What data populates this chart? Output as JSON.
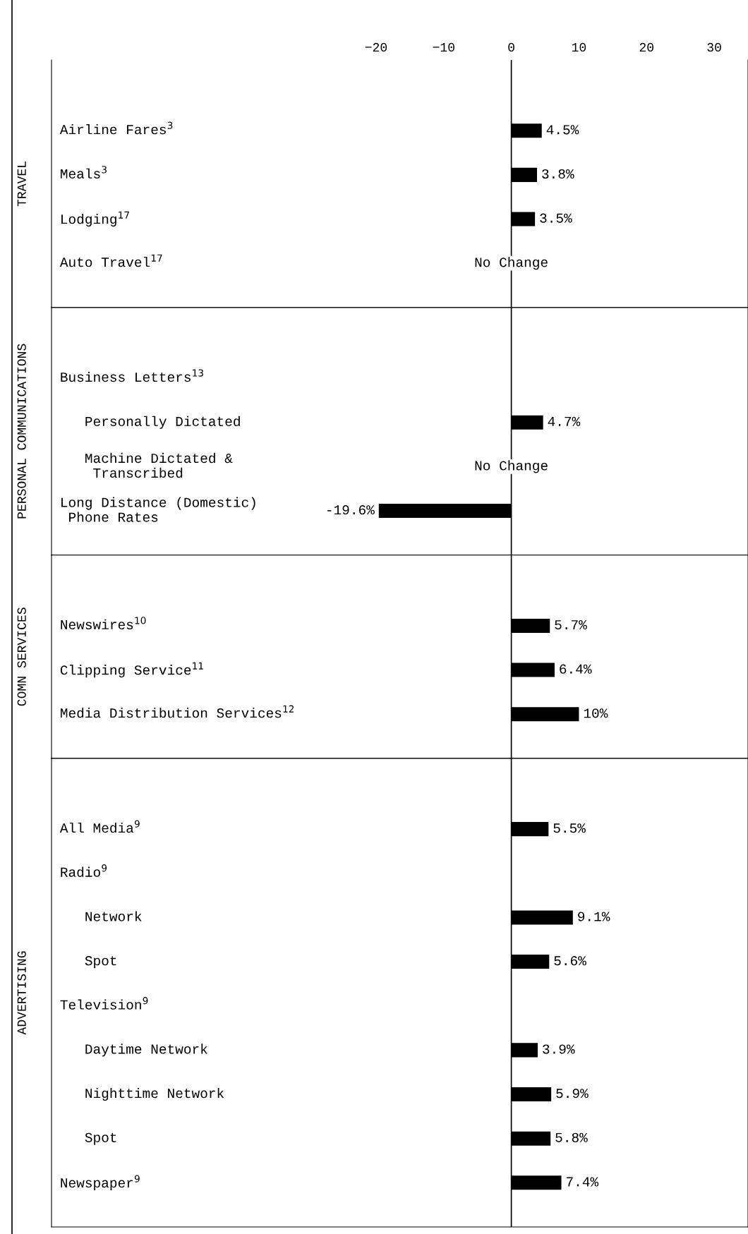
{
  "chart_data": [
    {
      "type": "bar",
      "orientation": "horizontal",
      "ylabel": "TRAVEL",
      "color": "#000000",
      "xlim": [
        -68,
        35
      ],
      "xticks": [
        -20,
        -10,
        0,
        10,
        20,
        30
      ],
      "tick_labels": "x",
      "grid": false,
      "categories": [
        "Airline Fares$^{3}$",
        "Meals$^{3}$",
        "Lodging$^{17}$",
        "Auto Travel$^{17}$"
      ],
      "values": [
        4.5,
        3.8,
        3.5,
        0
      ],
      "value_labels": [
        "4.5%",
        "3.8%",
        "3.5%",
        "No Change"
      ],
      "ref_lines": [
        {
          "axis": "x",
          "value": 0,
          "color": "#000000"
        }
      ]
    },
    {
      "type": "bar",
      "orientation": "horizontal",
      "ylabel": "PERSONAL COMMUNICATIONS",
      "color": "#000000",
      "xlim": [
        -68,
        35
      ],
      "tick_labels": false,
      "grid": false,
      "categories": [
        "Business Letters$^{13}$",
        "   Personally Dictated",
        "   Machine Dictated &\n    Transcribed",
        "Long Distance (Domestic)\n Phone Rates"
      ],
      "values": [
        null,
        4.7,
        0,
        -19.6
      ],
      "value_labels": [
        null,
        "4.7%",
        "No Change",
        "-19.6%"
      ],
      "ref_lines": [
        {
          "axis": "x",
          "value": 0,
          "color": "#000000"
        }
      ]
    },
    {
      "type": "bar",
      "orientation": "horizontal",
      "ylabel": "COMN SERVICES",
      "color": "#000000",
      "xlim": [
        -68,
        35
      ],
      "tick_labels": false,
      "grid": false,
      "categories": [
        "Newswires$^{10}$",
        "Clipping Service$^{11}$",
        "Media Distribution Services$^{12}$"
      ],
      "values": [
        5.7,
        6.4,
        10
      ],
      "value_labels": [
        "5.7%",
        "6.4%",
        "10%"
      ],
      "ref_lines": [
        {
          "axis": "x",
          "value": 0,
          "color": "#000000"
        }
      ]
    },
    {
      "type": "bar",
      "orientation": "horizontal",
      "ylabel": "ADVERTISING",
      "color": "#000000",
      "xlim": [
        -68,
        35
      ],
      "tick_labels": false,
      "grid": false,
      "categories": [
        "All Media$^{9}$",
        "Radio$^{9}$",
        "   Network",
        "   Spot",
        "Television$^{9}$",
        "   Daytime Network",
        "   Nighttime Network",
        "   Spot",
        "Newspaper$^{9}$"
      ],
      "values": [
        5.5,
        null,
        9.1,
        5.6,
        null,
        3.9,
        5.9,
        5.8,
        7.4
      ],
      "value_labels": [
        "5.5%",
        null,
        "9.1%",
        "5.6%",
        null,
        "3.9%",
        "5.9%",
        "5.8%",
        "7.4%"
      ],
      "ref_lines": [
        {
          "axis": "x",
          "value": 0,
          "color": "#000000"
        }
      ]
    }
  ]
}
